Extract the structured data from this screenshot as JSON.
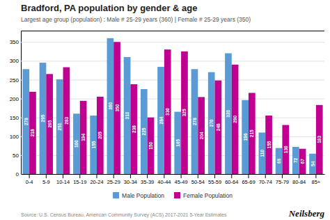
{
  "chart_data": {
    "type": "bar",
    "title": "Bradford, PA population by gender & age",
    "subtitle": "Largest age group (population) : Male # 25-29 years (360) | Female # 25-29 years (350)",
    "annotations": [
      "Source: U.S. Census Bureau, American Community Survey (ACS) 2017-2021 5-Year Estimates",
      "Neilsberg"
    ],
    "categories": [
      "0-4",
      "5-9",
      "10-14",
      "15-19",
      "20-24",
      "25-29",
      "30-34",
      "35-39",
      "40-44",
      "45-49",
      "50-54",
      "55-59",
      "60-64",
      "65-69",
      "70-74",
      "75-79",
      "80-84",
      "85+"
    ],
    "series": [
      {
        "name": "Male Population",
        "color": "#5B9BD5",
        "values": [
          278,
          295,
          251,
          160,
          155,
          360,
          310,
          225,
          284,
          165,
          278,
          270,
          320,
          196,
          110,
          69,
          72,
          54
        ]
      },
      {
        "name": "Female Population",
        "color": "#C0008F",
        "values": [
          218,
          265,
          283,
          194,
          205,
          350,
          238,
          150,
          330,
          325,
          204,
          248,
          290,
          215,
          155,
          130,
          67,
          183
        ]
      }
    ],
    "ylim": [
      0,
      380
    ],
    "yticks": [
      0,
      50,
      100,
      150,
      200,
      250,
      300,
      350
    ],
    "grid": true,
    "legend": "bottom",
    "data_labels": true
  }
}
